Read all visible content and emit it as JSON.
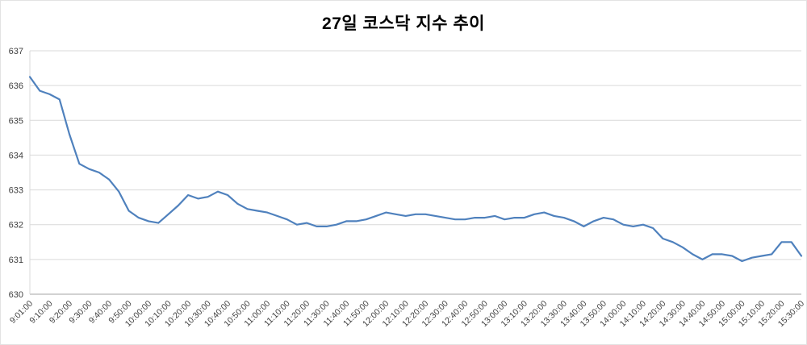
{
  "page": {
    "title": "27일 코스닥 지수 추이"
  },
  "chart_data": {
    "type": "line",
    "title": "27일 코스닥 지수 추이",
    "xlabel": "",
    "ylabel": "",
    "ylim": [
      630,
      637
    ],
    "yticks": [
      630,
      631,
      632,
      633,
      634,
      635,
      636,
      637
    ],
    "grid": true,
    "legend": "none",
    "line_color": "#4f81bd",
    "grid_color": "#d9d9d9",
    "axis_color": "#a6a6a6",
    "x_labels": [
      "9:01:00",
      "9:10:00",
      "9:20:00",
      "9:30:00",
      "9:40:00",
      "9:50:00",
      "10:00:00",
      "10:10:00",
      "10:20:00",
      "10:30:00",
      "10:40:00",
      "10:50:00",
      "11:00:00",
      "11:10:00",
      "11:20:00",
      "11:30:00",
      "11:40:00",
      "11:50:00",
      "12:00:00",
      "12:10:00",
      "12:20:00",
      "12:30:00",
      "12:40:00",
      "12:50:00",
      "13:00:00",
      "13:10:00",
      "13:20:00",
      "13:30:00",
      "13:40:00",
      "13:50:00",
      "14:00:00",
      "14:10:00",
      "14:20:00",
      "14:30:00",
      "14:40:00",
      "14:50:00",
      "15:00:00",
      "15:10:00",
      "15:20:00",
      "15:30:00"
    ],
    "values": [
      636.25,
      635.85,
      635.75,
      635.6,
      634.6,
      633.75,
      633.6,
      633.5,
      633.3,
      632.95,
      632.4,
      632.2,
      632.1,
      632.05,
      632.3,
      632.55,
      632.85,
      632.75,
      632.8,
      632.95,
      632.85,
      632.6,
      632.45,
      632.4,
      632.35,
      632.25,
      632.15,
      632.0,
      632.05,
      631.95,
      631.95,
      632.0,
      632.1,
      632.1,
      632.15,
      632.25,
      632.35,
      632.3,
      632.25,
      632.3,
      632.3,
      632.25,
      632.2,
      632.15,
      632.15,
      632.2,
      632.2,
      632.25,
      632.15,
      632.2,
      632.2,
      632.3,
      632.35,
      632.25,
      632.2,
      632.1,
      631.95,
      632.1,
      632.2,
      632.15,
      632.0,
      631.95,
      632.0,
      631.9,
      631.6,
      631.5,
      631.35,
      631.15,
      631.0,
      631.15,
      631.15,
      631.1,
      630.95,
      631.05,
      631.1,
      631.15,
      631.5,
      631.5,
      631.1
    ]
  }
}
